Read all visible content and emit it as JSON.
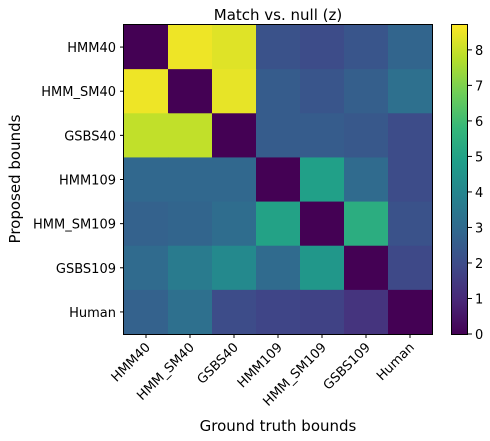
{
  "chart_data": {
    "type": "heatmap",
    "title": "Match vs. null (z)",
    "xlabel": "Ground truth bounds",
    "ylabel": "Proposed bounds",
    "x_categories": [
      "HMM40",
      "HMM_SM40",
      "GSBS40",
      "HMM109",
      "HMM_SM109",
      "GSBS109",
      "Human"
    ],
    "y_categories": [
      "HMM40",
      "HMM_SM40",
      "GSBS40",
      "HMM109",
      "HMM_SM109",
      "GSBS109",
      "Human"
    ],
    "values": [
      [
        0.0,
        8.5,
        8.3,
        2.2,
        2.0,
        2.3,
        2.8
      ],
      [
        8.5,
        0.0,
        8.4,
        2.5,
        2.3,
        2.6,
        3.2
      ],
      [
        7.9,
        7.9,
        0.0,
        2.5,
        2.5,
        2.4,
        2.0
      ],
      [
        2.9,
        2.9,
        2.9,
        0.0,
        4.9,
        3.0,
        2.0
      ],
      [
        2.7,
        2.8,
        3.1,
        5.0,
        0.0,
        5.4,
        2.2
      ],
      [
        3.0,
        3.6,
        4.1,
        3.0,
        4.6,
        0.0,
        1.9
      ],
      [
        2.7,
        3.2,
        2.0,
        1.8,
        1.7,
        1.3,
        0.0
      ]
    ],
    "colorbar": {
      "colormap": "viridis",
      "range": [
        0,
        8.7
      ],
      "ticks": [
        "0",
        "1",
        "2",
        "3",
        "4",
        "5",
        "6",
        "7",
        "8"
      ]
    }
  }
}
